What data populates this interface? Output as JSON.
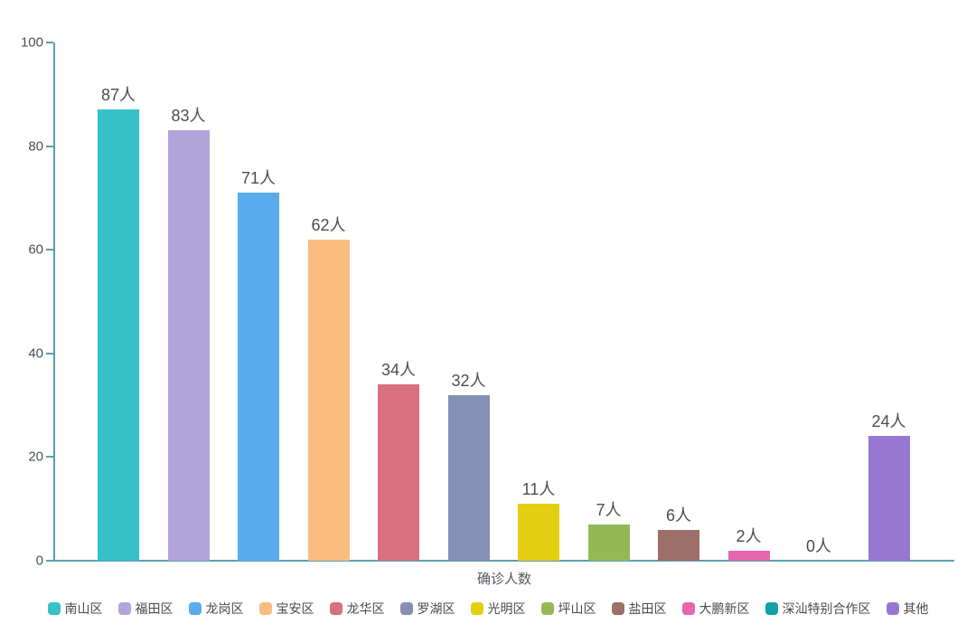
{
  "chart_data": {
    "type": "bar",
    "title": "",
    "xlabel": "确诊人数",
    "ylabel": "",
    "ylim": [
      0,
      100
    ],
    "yticks": [
      0,
      20,
      40,
      60,
      80,
      100
    ],
    "ytick_labels": [
      "0",
      "20",
      "40",
      "60",
      "80",
      "100"
    ],
    "unit_suffix": "人",
    "categories": [
      "南山区",
      "福田区",
      "龙岗区",
      "宝安区",
      "龙华区",
      "罗湖区",
      "光明区",
      "坪山区",
      "盐田区",
      "大鹏新区",
      "深汕特别合作区",
      "其他"
    ],
    "values": [
      87,
      83,
      71,
      62,
      34,
      32,
      11,
      7,
      6,
      2,
      0,
      24
    ],
    "value_labels": [
      "87人",
      "83人",
      "71人",
      "62人",
      "34人",
      "32人",
      "11人",
      "7人",
      "6人",
      "2人",
      "0人",
      "24人"
    ],
    "colors": [
      "#35C1C6",
      "#B1A4DB",
      "#5BACEC",
      "#FBBC80",
      "#D8707E",
      "#8591B4",
      "#E4CE12",
      "#93B957",
      "#9C6F68",
      "#E567AF",
      "#12A0A5",
      "#9877D2"
    ],
    "legend_position": "bottom",
    "grid": false,
    "axis_color": "#5C9FB2",
    "label_color": "#4C4F55"
  }
}
